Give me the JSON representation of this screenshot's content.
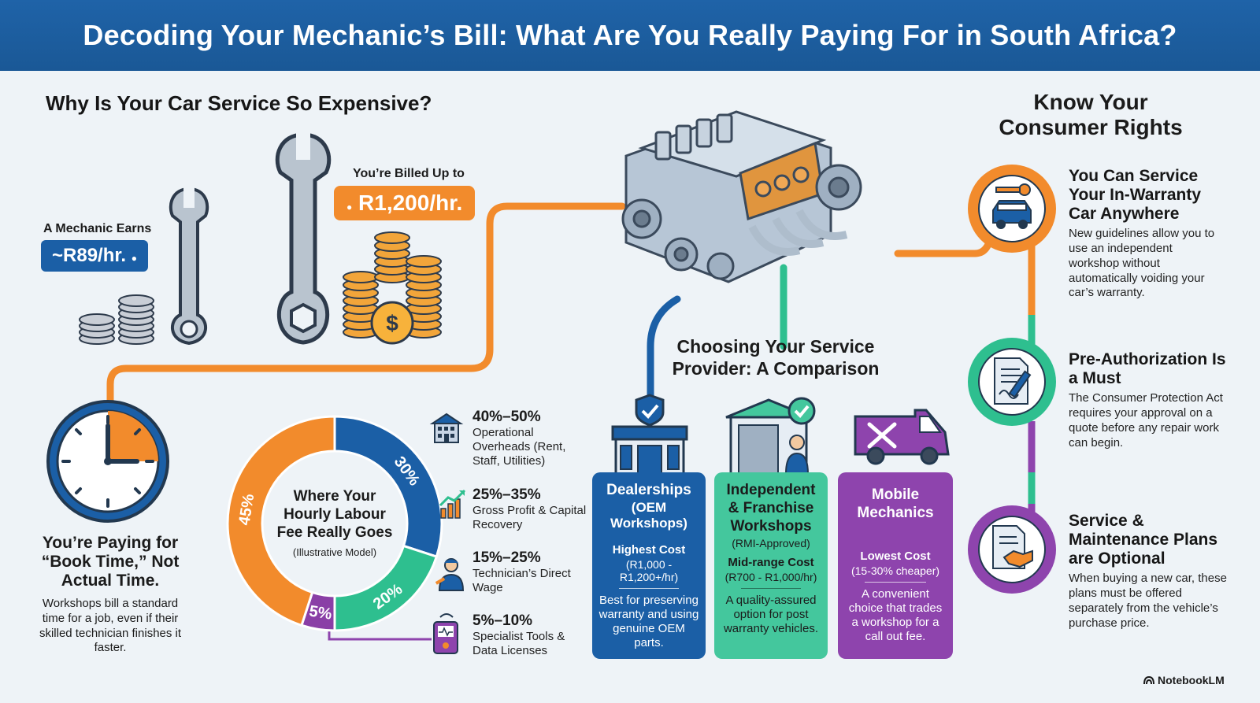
{
  "header": {
    "title": "Decoding Your Mechanic’s Bill: What Are You Really Paying For in South Africa?"
  },
  "left": {
    "heading": "Why Is Your Car Service So Expensive?",
    "earns_label": "A Mechanic Earns",
    "earns_value": "~R89/hr.",
    "billed_label": "You’re Billed Up to",
    "billed_value": "R1,200/hr.",
    "book_time_title": "You’re Paying for “Book Time,” Not Actual Time.",
    "book_time_desc": "Workshops bill a standard time for a job, even if their skilled technician finishes it faster."
  },
  "donut": {
    "title": "Where Your Hourly Labour Fee Really Goes",
    "subtitle": "(Illustrative Model)",
    "segments": [
      {
        "label": "30%",
        "value": 30,
        "color": "#1b5fa6"
      },
      {
        "label": "20%",
        "value": 20,
        "color": "#2ebf8f"
      },
      {
        "label": "5%",
        "value": 5,
        "color": "#8a3fa6"
      },
      {
        "label": "45%",
        "value": 45,
        "color": "#f28b2c"
      }
    ]
  },
  "breakdown": [
    {
      "pct": "40%–50%",
      "label": "Operational Overheads (Rent, Staff, Utilities)",
      "icon": "building-icon"
    },
    {
      "pct": "25%–35%",
      "label": "Gross Profit & Capital Recovery",
      "icon": "growth-chart-icon"
    },
    {
      "pct": "15%–25%",
      "label": "Technician’s Direct Wage",
      "icon": "technician-icon"
    },
    {
      "pct": "5%–10%",
      "label": "Specialist Tools & Data Licenses",
      "icon": "diagnostic-tool-icon"
    }
  ],
  "comparison": {
    "heading": "Choosing Your Service Provider: A Comparison",
    "cards": [
      {
        "name": "Dealerships",
        "sub": "(OEM Workshops)",
        "cost": "Highest Cost",
        "range": "(R1,000 - R1,200+/hr)",
        "desc": "Best for preserving warranty and using genuine OEM parts.",
        "color": "#1b5fa6"
      },
      {
        "name": "Independent & Franchise Workshops",
        "sub": "(RMI-Approved)",
        "cost": "Mid-range Cost",
        "range": "(R700 - R1,000/hr)",
        "desc": "A quality-assured option for post warranty vehicles.",
        "color": "#44c79d"
      },
      {
        "name": "Mobile Mechanics",
        "sub": "",
        "cost": "Lowest Cost",
        "range": "(15-30% cheaper)",
        "desc": "A convenient choice that trades a workshop for a call out fee.",
        "color": "#8e44ad"
      }
    ]
  },
  "rights": {
    "heading": "Know Your Consumer Rights",
    "items": [
      {
        "title": "You Can Service Your In-Warranty Car Anywhere",
        "desc": "New guidelines allow you to use an independent workshop without automatically voiding your car’s warranty.",
        "color": "#f28b2c",
        "icon": "car-key-icon"
      },
      {
        "title": "Pre-Authorization Is a Must",
        "desc": "The Consumer Protection Act requires your approval on a quote before any repair work can begin.",
        "color": "#2ebf8f",
        "icon": "signed-document-icon"
      },
      {
        "title": "Service & Maintenance Plans are Optional",
        "desc": "When buying a new car, these plans must be offered separately from the vehicle’s purchase price.",
        "color": "#8e44ad",
        "icon": "handshake-document-icon"
      }
    ]
  },
  "footer": {
    "brand": "NotebookLM"
  }
}
